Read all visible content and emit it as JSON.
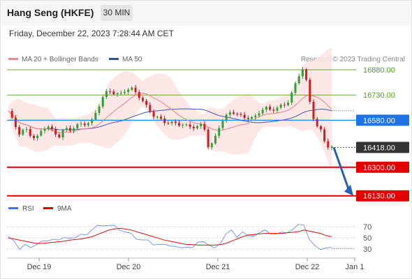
{
  "header": {
    "title": "Hang Seng (HKFE)",
    "timeframe": "30 MIN"
  },
  "datetime": "Friday, December 22, 2023 7:28:44 AM CET",
  "legend": {
    "ma20_label": "MA 20 + Bollinger Bands",
    "ma50_label": "MA 50",
    "credit": "Research © 2023 Trading Central"
  },
  "colors": {
    "ma20": "#f08a8a",
    "band": "#fde3e3",
    "ma50": "#4a6aa8",
    "up": "#2e9e3e",
    "down": "#d01c1c",
    "rsi": "#6f8ee8",
    "ma9": "#e01010",
    "pivot": "#1e73e8",
    "current": "#333333",
    "support": "#e00000",
    "resistance": "#4fa316"
  },
  "chart_data": [
    {
      "type": "candlestick",
      "ylim": [
        16050,
        16930
      ],
      "x_labels": [
        "Dec 19",
        "Dec 20",
        "Dec 21",
        "Dec 22",
        "Jan 1"
      ],
      "levels": [
        {
          "label": "16880.00",
          "value": 16880,
          "kind": "resistance"
        },
        {
          "label": "16730.00",
          "value": 16730,
          "kind": "resistance"
        },
        {
          "label": "16580.00",
          "value": 16580,
          "kind": "pivot"
        },
        {
          "label": "16418.00",
          "value": 16418,
          "kind": "current"
        },
        {
          "label": "16300.00",
          "value": 16300,
          "kind": "support"
        },
        {
          "label": "16130.00",
          "value": 16130,
          "kind": "support"
        }
      ],
      "anchors": [
        16635,
        16560,
        16500,
        16530,
        16490,
        16470,
        16520,
        16550,
        16510,
        16480,
        16530,
        16520,
        16545,
        16555,
        16560,
        16575,
        16650,
        16720,
        16760,
        16740,
        16730,
        16760,
        16770,
        16740,
        16700,
        16650,
        16610,
        16590,
        16570,
        16565,
        16560,
        16555,
        16545,
        16540,
        16540,
        16560,
        16400,
        16470,
        16560,
        16600,
        16635,
        16615,
        16600,
        16595,
        16590,
        16630,
        16655,
        16640,
        16650,
        16665,
        16680,
        16750,
        16840,
        16900,
        16700,
        16560,
        16520,
        16430,
        16418
      ],
      "projection": {
        "from": 16418,
        "to": 16130
      }
    },
    {
      "type": "line",
      "legend": [
        "RSI",
        "9MA"
      ],
      "y_ticks": [
        "70",
        "50",
        "30"
      ],
      "ylim": [
        20,
        85
      ],
      "rsi": [
        52,
        42,
        32,
        38,
        30,
        40,
        44,
        42,
        50,
        46,
        48,
        52,
        50,
        54,
        58,
        64,
        70,
        74,
        72,
        70,
        66,
        60,
        56,
        50,
        46,
        44,
        40,
        38,
        36,
        38,
        34,
        30,
        36,
        32,
        40,
        46,
        36,
        30,
        42,
        56,
        62,
        54,
        60,
        52,
        56,
        58,
        62,
        60,
        56,
        58,
        62,
        64,
        72,
        76,
        46,
        34,
        32,
        31,
        31
      ],
      "ma9": [
        50,
        48,
        46,
        44,
        42,
        40,
        40,
        41,
        42,
        43,
        44,
        46,
        47,
        48,
        50,
        52,
        56,
        60,
        64,
        66,
        67,
        66,
        64,
        61,
        58,
        55,
        52,
        49,
        46,
        44,
        42,
        40,
        38,
        38,
        37,
        37,
        37,
        37,
        38,
        40,
        44,
        48,
        52,
        55,
        56,
        57,
        58,
        58,
        58,
        58,
        59,
        60,
        61,
        64,
        62,
        60,
        58,
        54,
        52
      ]
    }
  ]
}
